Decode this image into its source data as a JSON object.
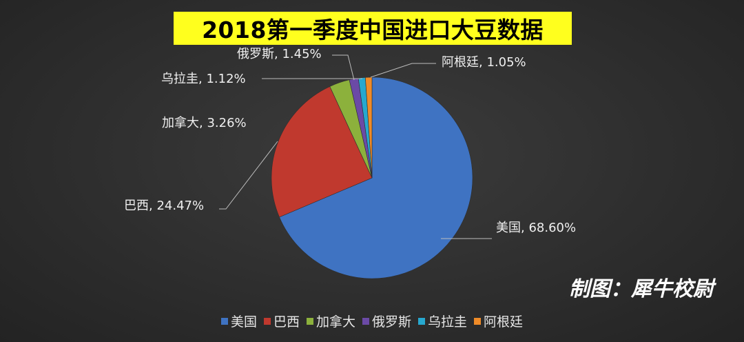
{
  "chart_data": {
    "type": "pie",
    "title": "2018第一季度中国进口大豆数据",
    "categories": [
      "美国",
      "巴西",
      "加拿大",
      "俄罗斯",
      "乌拉圭",
      "阿根廷"
    ],
    "values": [
      68.6,
      24.47,
      3.26,
      1.45,
      1.12,
      1.05
    ],
    "value_labels": [
      "68.60%",
      "24.47%",
      "3.26%",
      "1.45%",
      "1.12%",
      "1.05%"
    ],
    "data_labels": [
      "美国, 68.60%",
      "巴西, 24.47%",
      "加拿大, 3.26%",
      "俄罗斯, 1.45%",
      "乌拉圭, 1.12%",
      "阿根廷, 1.05%"
    ],
    "unit": "%",
    "colors": [
      "#3f73c2",
      "#c0392e",
      "#8cb13c",
      "#6b4aa6",
      "#27a8cf",
      "#ef8b28"
    ],
    "legend_position": "bottom",
    "background": "#2e2e2e",
    "title_background": "#ffff1e"
  },
  "watermark": "制图：犀牛校尉"
}
